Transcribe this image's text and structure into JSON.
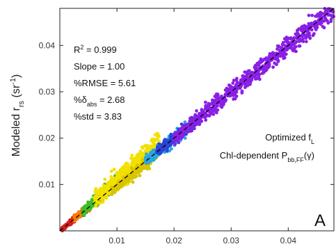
{
  "chart_data": {
    "type": "scatter",
    "title": "",
    "xlabel": "",
    "ylabel": {
      "base": "Modeled r",
      "sub": "rs",
      "unit_pre": " (sr",
      "unit_sup": "-1",
      "unit_post": ")"
    },
    "xlim": [
      0,
      0.048
    ],
    "ylim": [
      0,
      0.048
    ],
    "x_ticks": [
      0.01,
      0.02,
      0.03,
      0.04
    ],
    "x_tick_labels": [
      "0.01",
      "0.02",
      "0.03",
      "0.04"
    ],
    "y_ticks": [
      0.01,
      0.02,
      0.03,
      0.04
    ],
    "y_tick_labels": [
      "0.01",
      "0.02",
      "0.03",
      "0.04"
    ],
    "grid": false,
    "reference_line": {
      "x": [
        0,
        0.048
      ],
      "y": [
        0,
        0.048
      ],
      "style": "dashed",
      "color": "#000000"
    },
    "stats": [
      {
        "parts": [
          [
            "R",
            "n"
          ],
          [
            "2",
            "sup"
          ],
          [
            " = 0.999",
            "n"
          ]
        ]
      },
      {
        "parts": [
          [
            "Slope = 1.00",
            "n"
          ]
        ]
      },
      {
        "parts": [
          [
            "%RMSE = 5.61",
            "n"
          ]
        ]
      },
      {
        "parts": [
          [
            "%",
            "n"
          ],
          [
            "δ",
            "n"
          ],
          [
            "abs",
            "sub"
          ],
          [
            " = 2.68",
            "n"
          ]
        ]
      },
      {
        "parts": [
          [
            "%std = 3.83",
            "n"
          ]
        ]
      }
    ],
    "annotations": [
      {
        "parts": [
          [
            "Optimized f",
            "n"
          ],
          [
            "L",
            "sub"
          ]
        ]
      },
      {
        "parts": [
          [
            "Chl-dependent P",
            "n"
          ],
          [
            "bb,FF",
            "sub"
          ],
          [
            "(γ)",
            "n"
          ]
        ]
      }
    ],
    "panel_label": "A",
    "clusters": [
      {
        "x": [
          0.0003,
          0.005
        ],
        "slope": 1.0,
        "spread": 0.0004,
        "n": 240,
        "color": "#d81e1e"
      },
      {
        "x": [
          0.0025,
          0.008
        ],
        "slope": 1.02,
        "spread": 0.0006,
        "n": 260,
        "color": "#ff7a00"
      },
      {
        "x": [
          0.004,
          0.011
        ],
        "slope": 1.06,
        "spread": 0.0008,
        "n": 300,
        "color": "#3bbf27"
      },
      {
        "x": [
          0.006,
          0.0175
        ],
        "slope": 1.08,
        "spread": 0.0012,
        "n": 480,
        "color": "#f2e000"
      },
      {
        "x": [
          0.009,
          0.016
        ],
        "slope": 0.96,
        "spread": 0.0007,
        "n": 180,
        "color": "#d8c400"
      },
      {
        "x": [
          0.015,
          0.022
        ],
        "slope": 1.0,
        "spread": 0.0006,
        "n": 220,
        "color": "#2aa6e0"
      },
      {
        "x": [
          0.017,
          0.024
        ],
        "slope": 1.0,
        "spread": 0.0005,
        "n": 160,
        "color": "#2b43d6"
      },
      {
        "x": [
          0.02,
          0.048
        ],
        "slope": 1.0,
        "spread": 0.0006,
        "n": 700,
        "color": "#8a1fe6"
      }
    ]
  }
}
